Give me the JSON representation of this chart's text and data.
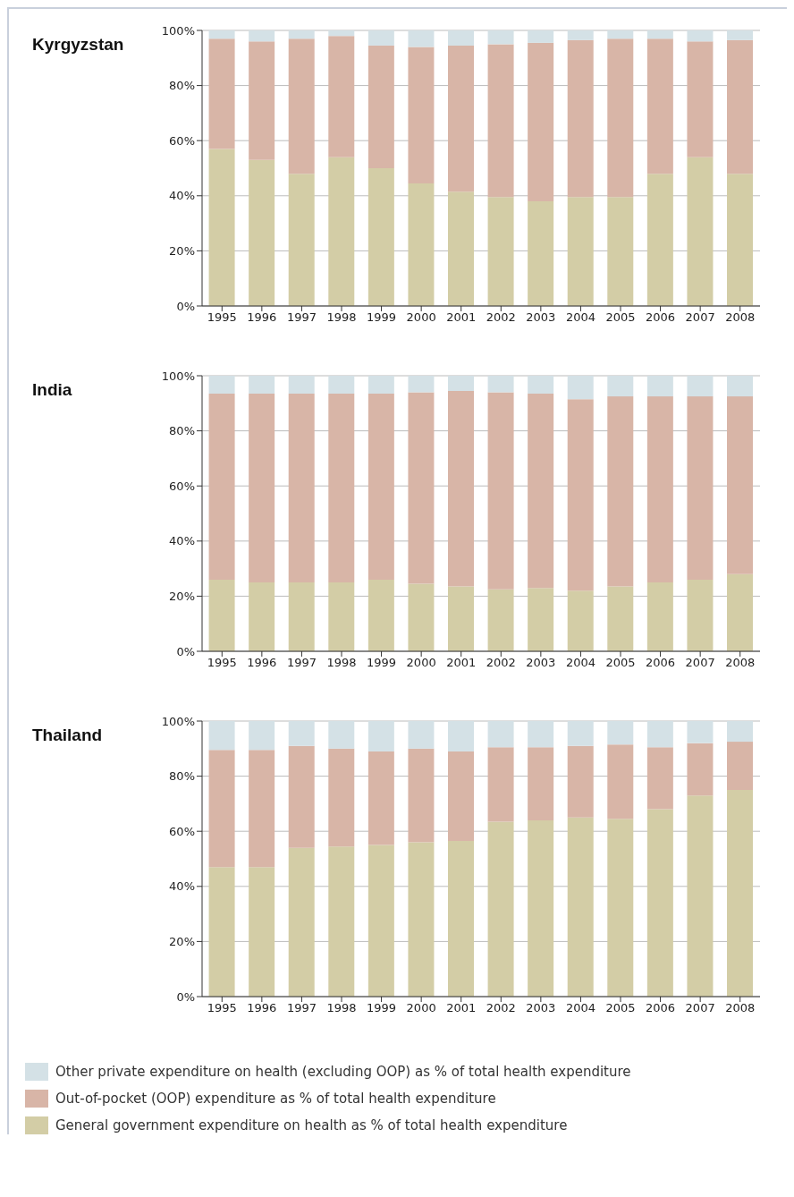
{
  "chart_data": [
    {
      "type": "bar",
      "title": "Kyrgyzstan",
      "stacked": true,
      "grid": "y",
      "ylim": [
        0,
        100
      ],
      "yticks": [
        {
          "value": 0,
          "label": "0%"
        },
        {
          "value": 20,
          "label": "20%"
        },
        {
          "value": 40,
          "label": "40%"
        },
        {
          "value": 60,
          "label": "60%"
        },
        {
          "value": 80,
          "label": "80%"
        },
        {
          "value": 100,
          "label": "100%"
        }
      ],
      "categories": [
        "1995",
        "1996",
        "1997",
        "1998",
        "1999",
        "2000",
        "2001",
        "2002",
        "2003",
        "2004",
        "2005",
        "2006",
        "2007",
        "2008"
      ],
      "series": [
        {
          "color": "#d3cda6",
          "values": [
            57,
            53,
            48,
            54,
            50,
            44.5,
            41.5,
            39.5,
            38,
            39.5,
            39.5,
            48,
            54,
            48
          ]
        },
        {
          "color": "#d8b5a7",
          "values": [
            40,
            43,
            49,
            44,
            44.5,
            49.5,
            53,
            55.5,
            57.5,
            57,
            57.5,
            49,
            42,
            48.5
          ]
        },
        {
          "color": "#d4e1e6",
          "values": [
            3,
            4,
            3,
            2,
            5.5,
            6,
            5.5,
            5,
            4.5,
            3.5,
            3,
            3,
            4,
            3.5
          ]
        }
      ]
    },
    {
      "type": "bar",
      "title": "India",
      "stacked": true,
      "grid": "y",
      "ylim": [
        0,
        100
      ],
      "yticks": [
        {
          "value": 0,
          "label": "0%"
        },
        {
          "value": 20,
          "label": "20%"
        },
        {
          "value": 40,
          "label": "40%"
        },
        {
          "value": 60,
          "label": "60%"
        },
        {
          "value": 80,
          "label": "80%"
        },
        {
          "value": 100,
          "label": "100%"
        }
      ],
      "categories": [
        "1995",
        "1996",
        "1997",
        "1998",
        "1999",
        "2000",
        "2001",
        "2002",
        "2003",
        "2004",
        "2005",
        "2006",
        "2007",
        "2008"
      ],
      "series": [
        {
          "color": "#d3cda6",
          "values": [
            26,
            25,
            25,
            25,
            26,
            24.5,
            23.5,
            22.5,
            23,
            22,
            23.5,
            25,
            26,
            28
          ]
        },
        {
          "color": "#d8b5a7",
          "values": [
            67.5,
            68.5,
            68.5,
            68.5,
            67.5,
            69.5,
            71,
            71.5,
            70.5,
            69.5,
            69,
            67.5,
            66.5,
            64.5
          ]
        },
        {
          "color": "#d4e1e6",
          "values": [
            6.5,
            6.5,
            6.5,
            6.5,
            6.5,
            6,
            5.5,
            6,
            6.5,
            8.5,
            7.5,
            7.5,
            7.5,
            7.5
          ]
        }
      ]
    },
    {
      "type": "bar",
      "title": "Thailand",
      "stacked": true,
      "grid": "y",
      "legend": "bottom",
      "ylim": [
        0,
        100
      ],
      "yticks": [
        {
          "value": 0,
          "label": "0%"
        },
        {
          "value": 20,
          "label": "20%"
        },
        {
          "value": 40,
          "label": "40%"
        },
        {
          "value": 60,
          "label": "60%"
        },
        {
          "value": 80,
          "label": "80%"
        },
        {
          "value": 100,
          "label": "100%"
        }
      ],
      "categories": [
        "1995",
        "1996",
        "1997",
        "1998",
        "1999",
        "2000",
        "2001",
        "2002",
        "2003",
        "2004",
        "2005",
        "2006",
        "2007",
        "2008"
      ],
      "series": [
        {
          "name": "General government expenditure on health as % of total health expenditure",
          "color": "#d3cda6",
          "values": [
            47,
            47,
            54,
            54.5,
            55,
            56,
            56.5,
            63.5,
            64,
            65,
            64.5,
            68,
            73,
            75
          ]
        },
        {
          "name": "Out-of-pocket (OOP) expenditure as % of total health expenditure",
          "color": "#d8b5a7",
          "values": [
            42.5,
            42.5,
            37,
            35.5,
            34,
            34,
            32.5,
            27,
            26.5,
            26,
            27,
            22.5,
            19,
            17.5
          ]
        },
        {
          "name": "Other private expenditure on health (excluding OOP) as % of total health expenditure",
          "color": "#d4e1e6",
          "values": [
            10.5,
            10.5,
            9,
            10,
            11,
            10,
            11,
            9.5,
            9.5,
            9,
            8.5,
            9.5,
            8,
            7.5
          ]
        }
      ]
    }
  ]
}
